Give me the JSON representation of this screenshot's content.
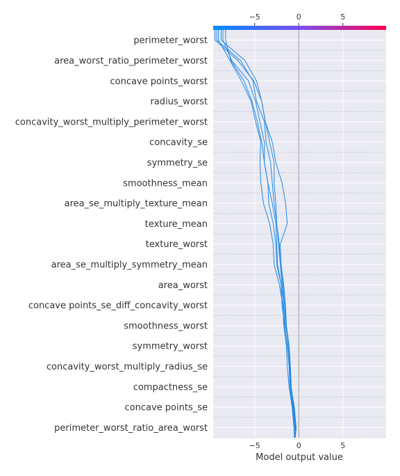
{
  "chart_data": {
    "type": "line",
    "title": "",
    "xlabel": "Model output value",
    "ylabel": "",
    "xlim": [
      -9.7,
      9.9
    ],
    "x_ticks": [
      -5,
      0,
      5
    ],
    "x_tick_labels": [
      "−5",
      "0",
      "5"
    ],
    "grid": true,
    "colorbar": {
      "position": "top",
      "from": "#008bfb",
      "to": "#ff0052"
    },
    "features": [
      "perimeter_worst",
      "area_worst_ratio_perimeter_worst",
      "concave points_worst",
      "radius_worst",
      "concavity_worst_multiply_perimeter_worst",
      "concavity_se",
      "symmetry_se",
      "smoothness_mean",
      "area_se_multiply_texture_mean",
      "texture_mean",
      "texture_worst",
      "area_se_multiply_symmetry_mean",
      "area_worst",
      "concave points_se_diff_concavity_worst",
      "smoothness_worst",
      "symmetry_worst",
      "concavity_worst_multiply_radius_se",
      "compactness_se",
      "concave points_se",
      "perimeter_worst_ratio_area_worst"
    ],
    "line_color": "#1e88e5",
    "series": [
      {
        "values": [
          -0.4,
          -0.45,
          -0.7,
          -1.0,
          -1.1,
          -1.3,
          -1.6,
          -1.9,
          -2.0,
          -2.4,
          -2.5,
          -2.6,
          -3.0,
          -3.5,
          -3.9,
          -4.2,
          -4.7,
          -5.3,
          -6.2,
          -7.7,
          -8.3
        ]
      },
      {
        "values": [
          -0.4,
          -0.3,
          -0.5,
          -0.9,
          -1.1,
          -1.3,
          -1.6,
          -1.7,
          -2.0,
          -2.5,
          -2.6,
          -2.9,
          -3.4,
          -3.5,
          -3.9,
          -3.9,
          -4.4,
          -4.9,
          -5.7,
          -7.6,
          -8.6
        ]
      },
      {
        "values": [
          -0.5,
          -0.55,
          -0.75,
          -1.1,
          -1.3,
          -1.4,
          -1.7,
          -1.8,
          -2.2,
          -2.8,
          -2.9,
          -3.3,
          -4.0,
          -4.3,
          -4.4,
          -4.3,
          -4.9,
          -5.4,
          -6.5,
          -7.8,
          -9.1
        ]
      },
      {
        "values": [
          -0.45,
          -0.4,
          -0.6,
          -0.9,
          -1.0,
          -1.2,
          -1.4,
          -1.6,
          -1.9,
          -2.1,
          -2.3,
          -2.5,
          -2.8,
          -3.0,
          -3.2,
          -3.7,
          -3.9,
          -4.8,
          -5.2,
          -6.6,
          -9.3
        ]
      },
      {
        "values": [
          -0.45,
          -0.35,
          -0.65,
          -1.0,
          -1.0,
          -1.1,
          -1.5,
          -1.6,
          -1.8,
          -2.1,
          -2.2,
          -2.5,
          -2.6,
          -2.8,
          -2.8,
          -3.3,
          -3.8,
          -4.2,
          -4.8,
          -6.1,
          -8.8
        ]
      },
      {
        "values": [
          -0.4,
          -0.3,
          -0.55,
          -0.85,
          -0.95,
          -1.1,
          -1.4,
          -1.5,
          -1.7,
          -2.0,
          -2.1,
          -1.3,
          -1.5,
          -1.9,
          -2.6,
          -3.0,
          -3.8,
          -4.2,
          -5.1,
          -6.9,
          -9.5
        ]
      }
    ]
  }
}
